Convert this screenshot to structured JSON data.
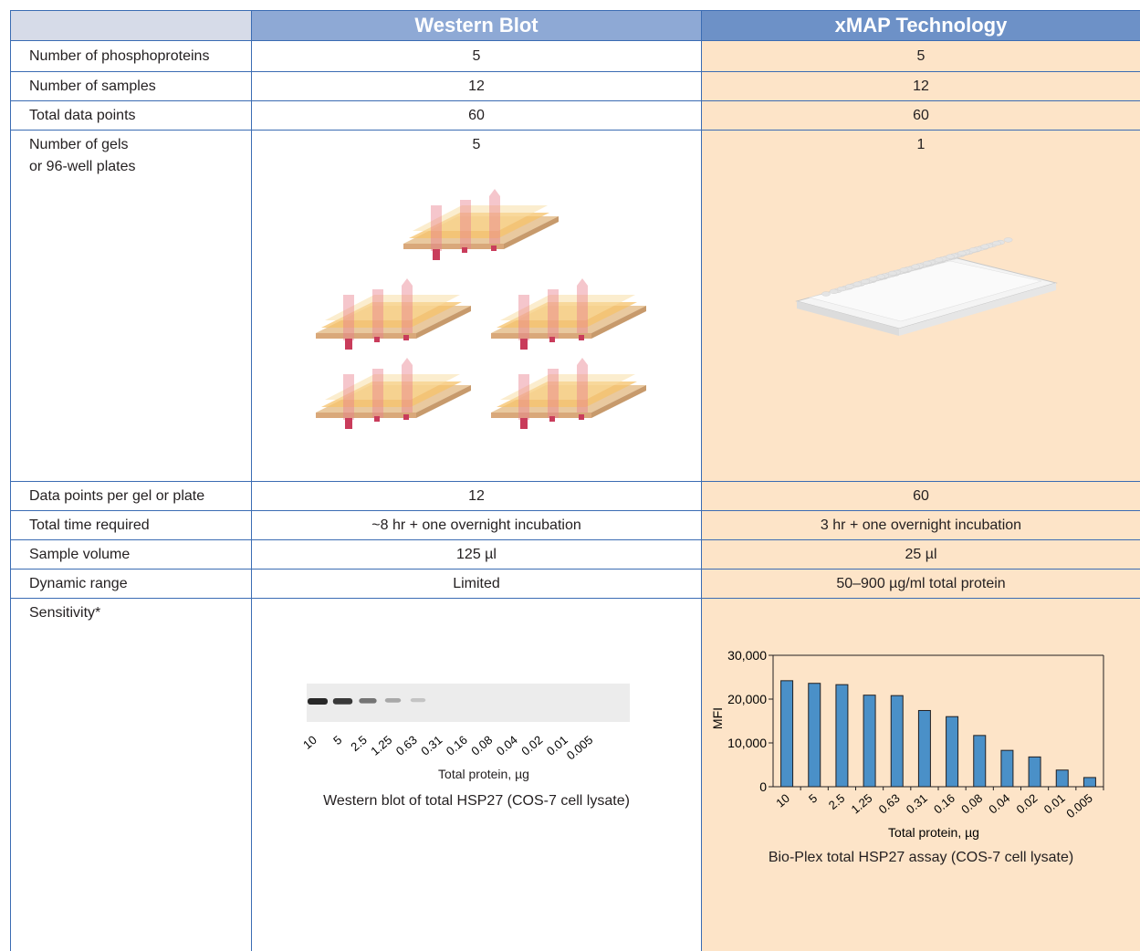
{
  "header": {
    "col1": "Western Blot",
    "col2": "xMAP Technology"
  },
  "rows": [
    {
      "label": "Number of phosphoproteins",
      "wb": "5",
      "xmap": "5"
    },
    {
      "label": "Number of samples",
      "wb": "12",
      "xmap": "12"
    },
    {
      "label": "Total data points",
      "wb": "60",
      "xmap": "60"
    },
    {
      "label_line1": "Number of gels",
      "label_line2": "or 96-well plates",
      "wb": "5",
      "xmap": "1"
    },
    {
      "label": "Data points per gel or plate",
      "wb": "12",
      "xmap": "60"
    },
    {
      "label": "Total time required",
      "wb": "~8 hr + one overnight incubation",
      "xmap": "3 hr + one overnight incubation"
    },
    {
      "label": "Sample volume",
      "wb": "125 µl",
      "xmap": "25 µl"
    },
    {
      "label": "Dynamic range",
      "wb": "Limited",
      "xmap": "50–900 µg/ml total protein"
    },
    {
      "label": "Sensitivity*"
    }
  ],
  "blot": {
    "lanes": [
      "10",
      "5",
      "2.5",
      "1.25",
      "0.63",
      "0.31",
      "0.16",
      "0.08",
      "0.04",
      "0.02",
      "0.01",
      "0.005"
    ],
    "band_intensity": [
      1.0,
      0.9,
      0.55,
      0.25,
      0.08,
      0,
      0,
      0,
      0,
      0,
      0,
      0
    ],
    "xlabel": "Total protein, µg",
    "caption": "Western blot of total HSP27 (COS-7 cell lysate)"
  },
  "chart_data": {
    "type": "bar",
    "categories": [
      "10",
      "5",
      "2.5",
      "1.25",
      "0.63",
      "0.31",
      "0.16",
      "0.08",
      "0.04",
      "0.02",
      "0.01",
      "0.005"
    ],
    "values": [
      24200,
      23600,
      23300,
      20900,
      20800,
      17400,
      16000,
      11700,
      8300,
      6800,
      3800,
      2100
    ],
    "xlabel": "Total protein, µg",
    "ylabel": "MFI",
    "ylim": [
      0,
      30000
    ],
    "yticks": [
      "0",
      "10,000",
      "20,000",
      "30,000"
    ],
    "caption": "Bio-Plex total HSP27 assay (COS-7 cell lysate)",
    "bar_color": "#4a90c8"
  }
}
